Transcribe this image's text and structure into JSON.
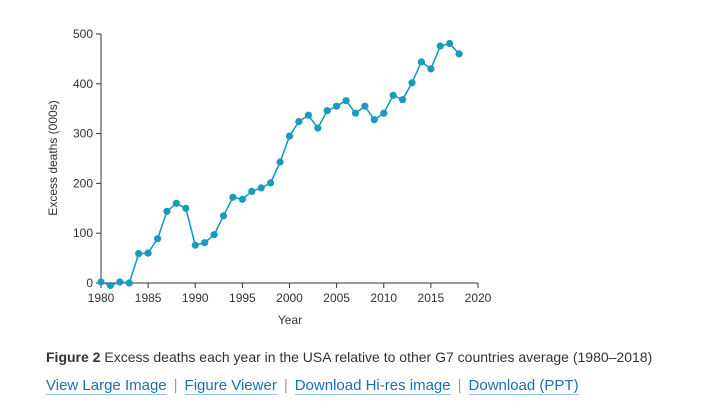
{
  "chart_data": {
    "type": "line",
    "xlabel": "Year",
    "ylabel": "Excess deaths (000s)",
    "xlim": [
      1980,
      2020
    ],
    "ylim": [
      0,
      500
    ],
    "xticks": [
      1980,
      1985,
      1990,
      1995,
      2000,
      2005,
      2010,
      2015,
      2020
    ],
    "yticks": [
      0,
      100,
      200,
      300,
      400,
      500
    ],
    "grid": false,
    "line_color": "#1a9bbd",
    "series": [
      {
        "x": [
          1980,
          1981,
          1982,
          1983,
          1984,
          1985,
          1986,
          1987,
          1988,
          1989,
          1990,
          1991,
          1992,
          1993,
          1994,
          1995,
          1996,
          1997,
          1998,
          1999,
          2000,
          2001,
          2002,
          2003,
          2004,
          2005,
          2006,
          2007,
          2008,
          2009,
          2010,
          2011,
          2012,
          2013,
          2014,
          2015,
          2016,
          2017,
          2018
        ],
        "values": [
          2,
          -5,
          2,
          0,
          59,
          60,
          89,
          144,
          160,
          150,
          76,
          81,
          97,
          135,
          172,
          168,
          184,
          191,
          201,
          243,
          295,
          324,
          337,
          311,
          346,
          355,
          366,
          341,
          355,
          328,
          341,
          377,
          368,
          402,
          444,
          430,
          476,
          481,
          460
        ]
      }
    ]
  },
  "caption": {
    "label": "Figure 2",
    "text": "Excess deaths each year in the USA relative to other G7 countries average (1980–2018)"
  },
  "links": {
    "view_large": "View Large Image",
    "figure_viewer": "Figure Viewer",
    "download_hires": "Download Hi-res image",
    "download_ppt": "Download (PPT)",
    "separator": "|"
  }
}
